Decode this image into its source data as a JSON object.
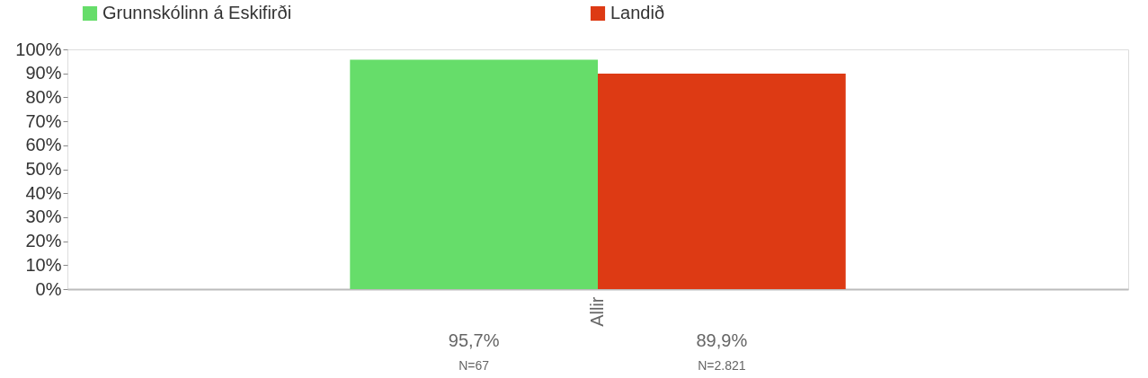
{
  "chart_data": {
    "type": "bar",
    "categories": [
      "Allir"
    ],
    "series": [
      {
        "name": "Grunnskólinn á Eskifirði",
        "color": "#66dd6a",
        "values": [
          95.7
        ],
        "value_labels": [
          "95,7%"
        ]
      },
      {
        "name": "Landið",
        "color": "#dd3a14",
        "values": [
          89.9
        ],
        "value_labels": [
          "89,9%"
        ]
      }
    ],
    "annotations": [
      "N=67",
      "N=2.821"
    ],
    "ylim": [
      0,
      100
    ],
    "yticks": [
      {
        "value": 0,
        "label": "0%"
      },
      {
        "value": 10,
        "label": "10%"
      },
      {
        "value": 20,
        "label": "20%"
      },
      {
        "value": 30,
        "label": "30%"
      },
      {
        "value": 40,
        "label": "40%"
      },
      {
        "value": 50,
        "label": "50%"
      },
      {
        "value": 60,
        "label": "60%"
      },
      {
        "value": 70,
        "label": "70%"
      },
      {
        "value": 80,
        "label": "80%"
      },
      {
        "value": 90,
        "label": "90%"
      },
      {
        "value": 100,
        "label": "100%"
      }
    ],
    "grid": false,
    "legend": "top"
  }
}
